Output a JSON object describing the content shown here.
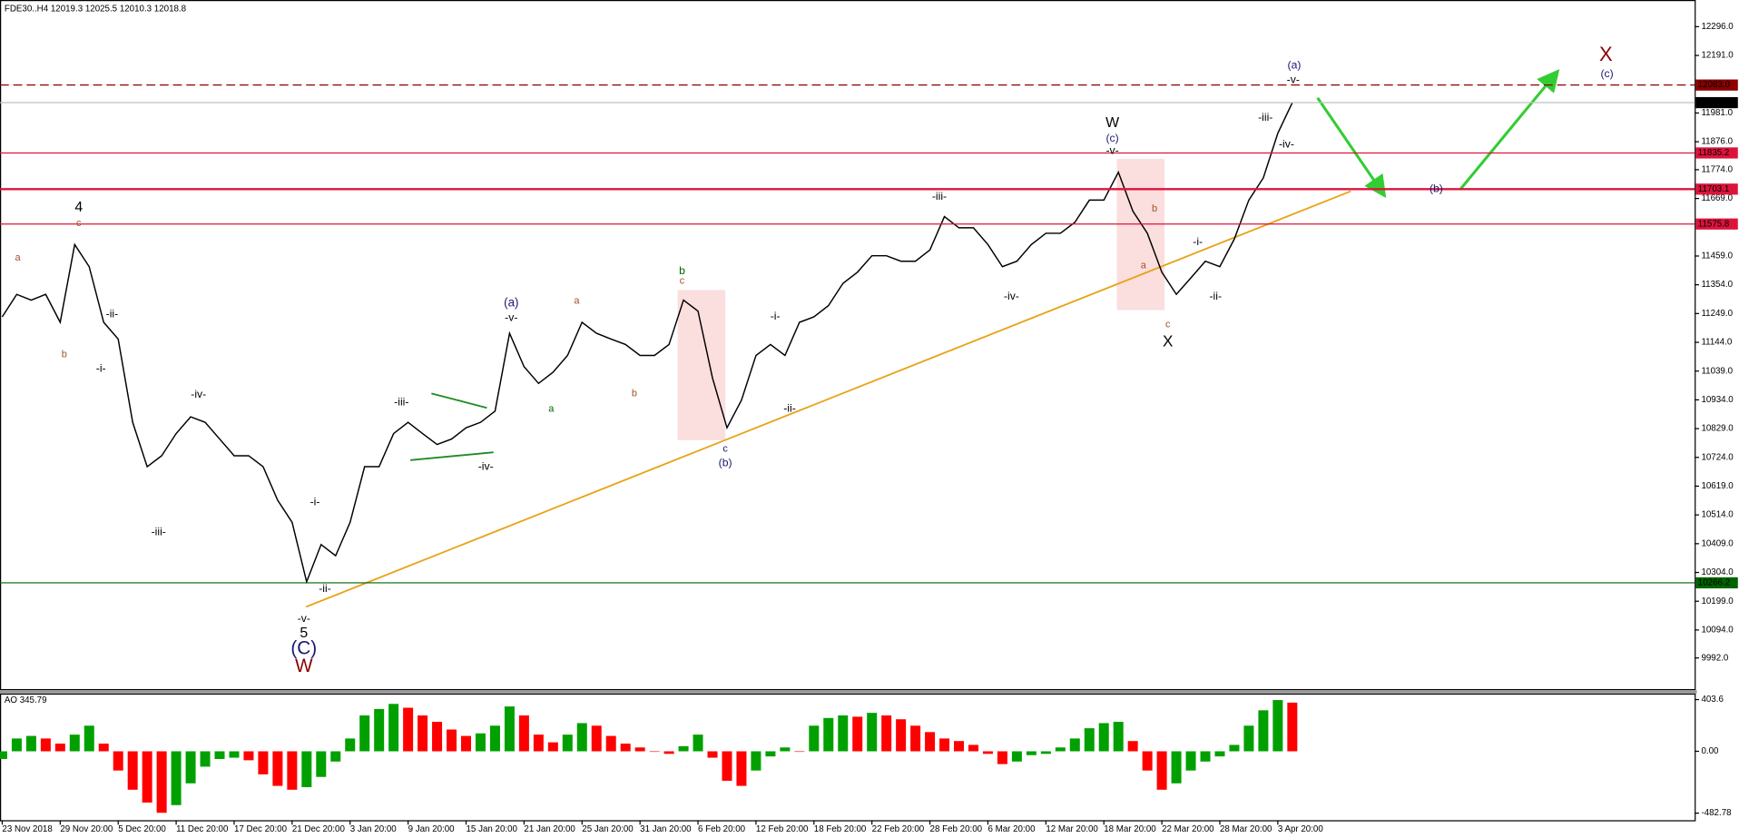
{
  "chart_data": [
    {
      "type": "line",
      "title": "FDE30..H4  12019.3 12025.5 12010.3 12018.8",
      "categories": [
        "23 Nov 2018",
        null,
        null,
        null,
        "29 Nov 20:00",
        null,
        null,
        null,
        "5 Dec 20:00",
        null,
        null,
        null,
        "11 Dec 20:00",
        null,
        null,
        null,
        "17 Dec 20:00",
        null,
        null,
        null,
        "21 Dec 20:00",
        null,
        null,
        null,
        "3 Jan 20:00",
        null,
        null,
        null,
        "9 Jan 20:00",
        null,
        null,
        null,
        "15 Jan 20:00",
        null,
        null,
        null,
        "21 Jan 20:00",
        null,
        null,
        null,
        "25 Jan 20:00",
        null,
        null,
        null,
        "31 Jan 20:00",
        null,
        null,
        null,
        "6 Feb 20:00",
        null,
        null,
        null,
        "12 Feb 20:00",
        null,
        null,
        null,
        "18 Feb 20:00",
        null,
        null,
        null,
        "22 Feb 20:00",
        null,
        null,
        null,
        "28 Feb 20:00",
        null,
        null,
        null,
        "6 Mar 20:00",
        null,
        null,
        null,
        "12 Mar 20:00",
        null,
        null,
        null,
        "18 Mar 20:00",
        null,
        null,
        null,
        "22 Mar 20:00",
        null,
        null,
        null,
        "28 Mar 20:00",
        null,
        null,
        null,
        "3 Apr 20:00",
        null
      ],
      "series": [
        {
          "color": "#000000",
          "values": [
            11237,
            11319,
            11298,
            11319,
            11217,
            11501,
            11420,
            11217,
            11156,
            10852,
            10690,
            10730,
            10811,
            10872,
            10852,
            10791,
            10730,
            10730,
            10690,
            10568,
            10487,
            10270,
            10406,
            10365,
            10487,
            10690,
            10690,
            10811,
            10852,
            10811,
            10771,
            10791,
            10832,
            10852,
            10893,
            11177,
            11055,
            10994,
            11035,
            11096,
            11217,
            11177,
            11156,
            11136,
            11096,
            11096,
            11136,
            11298,
            11258,
            11014,
            10832,
            10933,
            11096,
            11136,
            11096,
            11217,
            11237,
            11278,
            11359,
            11400,
            11460,
            11460,
            11440,
            11440,
            11481,
            11603,
            11562,
            11562,
            11501,
            11420,
            11440,
            11501,
            11542,
            11542,
            11582,
            11663,
            11663,
            11765,
            11623,
            11542,
            11400,
            11319,
            11379,
            11440,
            11420,
            11521,
            11663,
            11744,
            11907,
            12018.8
          ]
        }
      ],
      "ylim": [
        9878.4,
        12393.4
      ],
      "yticks": [
        {
          "value": 12296,
          "label": "12296.0"
        },
        {
          "value": 12191,
          "label": "12191.0"
        },
        {
          "value": 11981,
          "label": "11981.0"
        },
        {
          "value": 11876,
          "label": "11876.0"
        },
        {
          "value": 11774,
          "label": "11774.0"
        },
        {
          "value": 11669,
          "label": "11669.0"
        },
        {
          "value": 11459,
          "label": "11459.0"
        },
        {
          "value": 11354,
          "label": "11354.0"
        },
        {
          "value": 11249,
          "label": "11249.0"
        },
        {
          "value": 11144,
          "label": "11144.0"
        },
        {
          "value": 11039,
          "label": "11039.0"
        },
        {
          "value": 10934,
          "label": "10934.0"
        },
        {
          "value": 10829,
          "label": "10829.0"
        },
        {
          "value": 10724,
          "label": "10724.0"
        },
        {
          "value": 10619,
          "label": "10619.0"
        },
        {
          "value": 10514,
          "label": "10514.0"
        },
        {
          "value": 10409,
          "label": "10409.0"
        },
        {
          "value": 10304,
          "label": "10304.0"
        },
        {
          "value": 10199,
          "label": "10199.0"
        },
        {
          "value": 10094,
          "label": "10094.0"
        },
        {
          "value": 9992,
          "label": "9992.0"
        }
      ],
      "levels": [
        {
          "value": 12083,
          "label": "12083.0",
          "color": "#8b0000",
          "style": "dashed"
        },
        {
          "value": 12018.8,
          "label": "12018.8",
          "color": "#c0c0c0",
          "label_color": "#000000"
        },
        {
          "value": 11835.2,
          "label": "11835.2",
          "color": "#dc143c"
        },
        {
          "value": 11703.1,
          "label": "11703.1",
          "color": "#dc143c",
          "width": 2
        },
        {
          "value": 11575.8,
          "label": "11575.8",
          "color": "#dc143c"
        },
        {
          "value": 10266.2,
          "label": "10266.2",
          "color": "#006400"
        }
      ],
      "annotations": [
        {
          "text": "a",
          "color": "#a0522d"
        },
        {
          "text": "b",
          "color": "#a0522d"
        },
        {
          "text": "4",
          "color": "#000000"
        },
        {
          "text": "c",
          "color": "#a0522d"
        },
        {
          "text": "-ii-",
          "color": "#000000"
        },
        {
          "text": "-i-",
          "color": "#000000"
        },
        {
          "text": "-iv-",
          "color": "#000000"
        },
        {
          "text": "-iii-",
          "color": "#000000"
        },
        {
          "text": "-i-",
          "color": "#000000"
        },
        {
          "text": "-ii-",
          "color": "#000000"
        },
        {
          "text": "-v-",
          "color": "#000000"
        },
        {
          "text": "5",
          "color": "#000000"
        },
        {
          "text": "(C)",
          "color": "#191970"
        },
        {
          "text": "W",
          "color": "#8b0000"
        },
        {
          "text": "-iii-",
          "color": "#000000"
        },
        {
          "text": "-iv-",
          "color": "#000000"
        },
        {
          "text": "(a)",
          "color": "#191970"
        },
        {
          "text": "-v-",
          "color": "#000000"
        },
        {
          "text": "a",
          "color": "#006400"
        },
        {
          "text": "a",
          "color": "#a0522d"
        },
        {
          "text": "b",
          "color": "#a0522d"
        },
        {
          "text": "b",
          "color": "#006400"
        },
        {
          "text": "c",
          "color": "#a0522d"
        },
        {
          "text": "c",
          "color": "#191970"
        },
        {
          "text": "(b)",
          "color": "#191970"
        },
        {
          "text": "-i-",
          "color": "#000000"
        },
        {
          "text": "-ii-",
          "color": "#000000"
        },
        {
          "text": "-iii-",
          "color": "#000000"
        },
        {
          "text": "-iv-",
          "color": "#000000"
        },
        {
          "text": "W",
          "color": "#000000"
        },
        {
          "text": "(c)",
          "color": "#191970"
        },
        {
          "text": "-v-",
          "color": "#000000"
        },
        {
          "text": "b",
          "color": "#a0522d"
        },
        {
          "text": "a",
          "color": "#a0522d"
        },
        {
          "text": "c",
          "color": "#a0522d"
        },
        {
          "text": "X",
          "color": "#000000"
        },
        {
          "text": "-i-",
          "color": "#000000"
        },
        {
          "text": "-ii-",
          "color": "#000000"
        },
        {
          "text": "-iii-",
          "color": "#000000"
        },
        {
          "text": "-iv-",
          "color": "#000000"
        },
        {
          "text": "-v-",
          "color": "#000000"
        },
        {
          "text": "(a)",
          "color": "#191970"
        },
        {
          "text": "X",
          "color": "#8b0000"
        },
        {
          "text": "(c)",
          "color": "#191970"
        },
        {
          "text": "(b)",
          "color": "#191970"
        }
      ]
    },
    {
      "type": "bar",
      "title": "AO 345.79",
      "up_color": "#00a000",
      "down_color": "#ff0000",
      "values": [
        -60,
        100,
        120,
        100,
        60,
        130,
        200,
        60,
        -150,
        -300,
        -400,
        -480,
        -420,
        -250,
        -120,
        -60,
        -50,
        -70,
        -180,
        -270,
        -300,
        -280,
        -200,
        -80,
        100,
        280,
        330,
        370,
        340,
        280,
        230,
        170,
        120,
        140,
        200,
        350,
        280,
        130,
        70,
        130,
        220,
        200,
        120,
        60,
        30,
        0,
        -20,
        40,
        130,
        -50,
        -230,
        -270,
        -150,
        -40,
        30,
        0,
        200,
        260,
        280,
        270,
        300,
        280,
        250,
        200,
        150,
        100,
        80,
        50,
        -20,
        -100,
        -80,
        -30,
        -20,
        30,
        100,
        180,
        220,
        230,
        80,
        -150,
        -300,
        -250,
        -150,
        -80,
        -40,
        50,
        200,
        320,
        400,
        380
      ],
      "ylim": [
        -538,
        451
      ],
      "yticks": [
        403.6,
        {
          "value": 0,
          "label": "0.00"
        },
        -482.78
      ]
    }
  ]
}
